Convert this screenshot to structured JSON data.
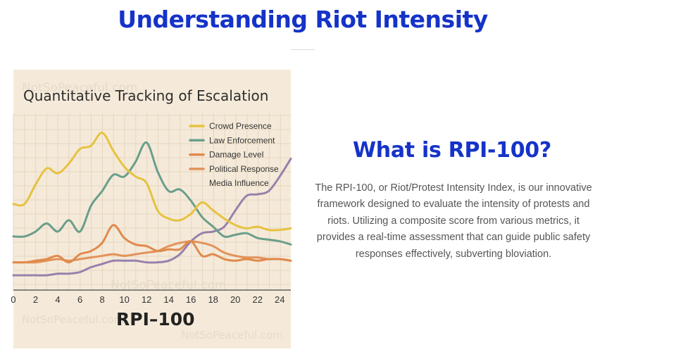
{
  "page": {
    "title": "Understanding Riot Intensity"
  },
  "section": {
    "heading": "What is RPI-100?",
    "body": "The RPI-100, or Riot/Protest Intensity Index, is our innovative framework designed to evaluate the intensity of protests and riots. Utilizing a composite score from various metrics, it provides a real-time assessment that can guide public safety responses effectively, subverting bloviation."
  },
  "image": {
    "watermark": "NotSoPeaceful.com"
  },
  "chart_data": {
    "type": "line",
    "title": "Quantitative Tracking of Escalation",
    "xlabel": "RPI–100",
    "ylabel": "",
    "xlim": [
      0,
      25
    ],
    "ylim": [
      0,
      100
    ],
    "x_ticks": [
      "0",
      "2",
      "4",
      "6",
      "8",
      "10",
      "12",
      "14",
      "16",
      "18",
      "20",
      "22",
      "24"
    ],
    "grid": true,
    "legend_position": "top-right",
    "series": [
      {
        "name": "Crowd Presence",
        "color": "#e6c23f",
        "points": [
          [
            0,
            44
          ],
          [
            1,
            44
          ],
          [
            2,
            56
          ],
          [
            3,
            66
          ],
          [
            4,
            63
          ],
          [
            5,
            69
          ],
          [
            6,
            78
          ],
          [
            7,
            80
          ],
          [
            8,
            88
          ],
          [
            9,
            77
          ],
          [
            10,
            67
          ],
          [
            11,
            61
          ],
          [
            12,
            57
          ],
          [
            13,
            40
          ],
          [
            14,
            35
          ],
          [
            15,
            34
          ],
          [
            16,
            38
          ],
          [
            17,
            45
          ],
          [
            18,
            40
          ],
          [
            19,
            35
          ],
          [
            20,
            31
          ],
          [
            21,
            29
          ],
          [
            22,
            30
          ],
          [
            23,
            28
          ],
          [
            24,
            28
          ],
          [
            25,
            29
          ]
        ]
      },
      {
        "name": "Law Enforcement",
        "color": "#6b9e8c",
        "points": [
          [
            0,
            24
          ],
          [
            1,
            24
          ],
          [
            2,
            27
          ],
          [
            3,
            32
          ],
          [
            4,
            27
          ],
          [
            5,
            34
          ],
          [
            6,
            27
          ],
          [
            7,
            43
          ],
          [
            8,
            52
          ],
          [
            9,
            62
          ],
          [
            10,
            61
          ],
          [
            11,
            70
          ],
          [
            12,
            82
          ],
          [
            13,
            64
          ],
          [
            14,
            52
          ],
          [
            15,
            53
          ],
          [
            16,
            46
          ],
          [
            17,
            36
          ],
          [
            18,
            30
          ],
          [
            19,
            24
          ],
          [
            20,
            25
          ],
          [
            21,
            26
          ],
          [
            22,
            23
          ],
          [
            23,
            22
          ],
          [
            24,
            21
          ],
          [
            25,
            19
          ]
        ]
      },
      {
        "name": "Damage Level",
        "color": "#e08a4c",
        "points": [
          [
            0,
            8
          ],
          [
            1,
            8
          ],
          [
            2,
            9
          ],
          [
            3,
            10
          ],
          [
            4,
            12
          ],
          [
            5,
            8
          ],
          [
            6,
            13
          ],
          [
            7,
            15
          ],
          [
            8,
            20
          ],
          [
            9,
            31
          ],
          [
            10,
            23
          ],
          [
            11,
            19
          ],
          [
            12,
            18
          ],
          [
            13,
            15
          ],
          [
            14,
            16
          ],
          [
            15,
            16
          ],
          [
            16,
            21
          ],
          [
            17,
            12
          ],
          [
            18,
            13
          ],
          [
            19,
            10
          ],
          [
            20,
            9
          ],
          [
            21,
            10
          ],
          [
            22,
            9
          ],
          [
            23,
            10
          ],
          [
            24,
            10
          ],
          [
            25,
            9
          ]
        ]
      },
      {
        "name": "Political Response",
        "color": "#e3925a",
        "points": [
          [
            0,
            8
          ],
          [
            1,
            8
          ],
          [
            2,
            8
          ],
          [
            3,
            9
          ],
          [
            4,
            10
          ],
          [
            5,
            9
          ],
          [
            6,
            10
          ],
          [
            7,
            11
          ],
          [
            8,
            12
          ],
          [
            9,
            13
          ],
          [
            10,
            12
          ],
          [
            11,
            13
          ],
          [
            12,
            14
          ],
          [
            13,
            15
          ],
          [
            14,
            18
          ],
          [
            15,
            20
          ],
          [
            16,
            21
          ],
          [
            17,
            20
          ],
          [
            18,
            18
          ],
          [
            19,
            14
          ],
          [
            20,
            12
          ],
          [
            21,
            11
          ],
          [
            22,
            11
          ],
          [
            23,
            10
          ],
          [
            24,
            10
          ],
          [
            25,
            9
          ]
        ]
      },
      {
        "name": "Media Influence",
        "color": "#9781ab",
        "points": [
          [
            0,
            0
          ],
          [
            1,
            0
          ],
          [
            2,
            0
          ],
          [
            3,
            0
          ],
          [
            4,
            1
          ],
          [
            5,
            1
          ],
          [
            6,
            2
          ],
          [
            7,
            5
          ],
          [
            8,
            7
          ],
          [
            9,
            9
          ],
          [
            10,
            9
          ],
          [
            11,
            9
          ],
          [
            12,
            8
          ],
          [
            13,
            8
          ],
          [
            14,
            9
          ],
          [
            15,
            13
          ],
          [
            16,
            21
          ],
          [
            17,
            26
          ],
          [
            18,
            27
          ],
          [
            19,
            30
          ],
          [
            20,
            40
          ],
          [
            21,
            49
          ],
          [
            22,
            50
          ],
          [
            23,
            52
          ],
          [
            24,
            61
          ],
          [
            25,
            72
          ]
        ]
      }
    ]
  }
}
